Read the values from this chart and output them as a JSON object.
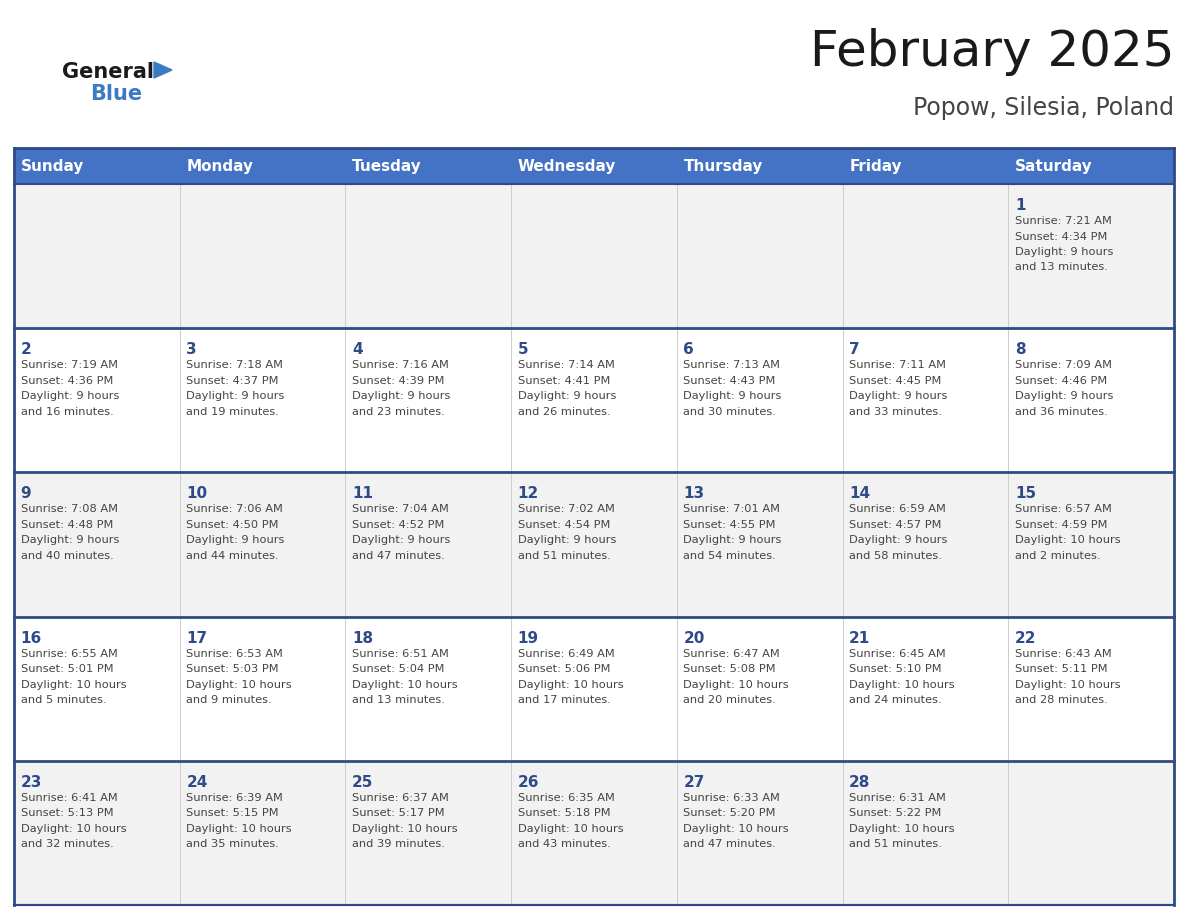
{
  "title": "February 2025",
  "subtitle": "Popow, Silesia, Poland",
  "header_bg": "#4472C4",
  "header_text": "#FFFFFF",
  "header_days": [
    "Sunday",
    "Monday",
    "Tuesday",
    "Wednesday",
    "Thursday",
    "Friday",
    "Saturday"
  ],
  "row_bg_light": "#F2F2F2",
  "row_bg_white": "#FFFFFF",
  "day_num_color": "#2E4A87",
  "cell_text_color": "#444444",
  "border_color": "#2E4A87",
  "title_color": "#1a1a1a",
  "subtitle_color": "#444444",
  "logo_general_color": "#1a1a1a",
  "logo_blue_color": "#3D7AC4",
  "weeks": [
    [
      {
        "day": null,
        "info": null
      },
      {
        "day": null,
        "info": null
      },
      {
        "day": null,
        "info": null
      },
      {
        "day": null,
        "info": null
      },
      {
        "day": null,
        "info": null
      },
      {
        "day": null,
        "info": null
      },
      {
        "day": 1,
        "info": "Sunrise: 7:21 AM\nSunset: 4:34 PM\nDaylight: 9 hours\nand 13 minutes."
      }
    ],
    [
      {
        "day": 2,
        "info": "Sunrise: 7:19 AM\nSunset: 4:36 PM\nDaylight: 9 hours\nand 16 minutes."
      },
      {
        "day": 3,
        "info": "Sunrise: 7:18 AM\nSunset: 4:37 PM\nDaylight: 9 hours\nand 19 minutes."
      },
      {
        "day": 4,
        "info": "Sunrise: 7:16 AM\nSunset: 4:39 PM\nDaylight: 9 hours\nand 23 minutes."
      },
      {
        "day": 5,
        "info": "Sunrise: 7:14 AM\nSunset: 4:41 PM\nDaylight: 9 hours\nand 26 minutes."
      },
      {
        "day": 6,
        "info": "Sunrise: 7:13 AM\nSunset: 4:43 PM\nDaylight: 9 hours\nand 30 minutes."
      },
      {
        "day": 7,
        "info": "Sunrise: 7:11 AM\nSunset: 4:45 PM\nDaylight: 9 hours\nand 33 minutes."
      },
      {
        "day": 8,
        "info": "Sunrise: 7:09 AM\nSunset: 4:46 PM\nDaylight: 9 hours\nand 36 minutes."
      }
    ],
    [
      {
        "day": 9,
        "info": "Sunrise: 7:08 AM\nSunset: 4:48 PM\nDaylight: 9 hours\nand 40 minutes."
      },
      {
        "day": 10,
        "info": "Sunrise: 7:06 AM\nSunset: 4:50 PM\nDaylight: 9 hours\nand 44 minutes."
      },
      {
        "day": 11,
        "info": "Sunrise: 7:04 AM\nSunset: 4:52 PM\nDaylight: 9 hours\nand 47 minutes."
      },
      {
        "day": 12,
        "info": "Sunrise: 7:02 AM\nSunset: 4:54 PM\nDaylight: 9 hours\nand 51 minutes."
      },
      {
        "day": 13,
        "info": "Sunrise: 7:01 AM\nSunset: 4:55 PM\nDaylight: 9 hours\nand 54 minutes."
      },
      {
        "day": 14,
        "info": "Sunrise: 6:59 AM\nSunset: 4:57 PM\nDaylight: 9 hours\nand 58 minutes."
      },
      {
        "day": 15,
        "info": "Sunrise: 6:57 AM\nSunset: 4:59 PM\nDaylight: 10 hours\nand 2 minutes."
      }
    ],
    [
      {
        "day": 16,
        "info": "Sunrise: 6:55 AM\nSunset: 5:01 PM\nDaylight: 10 hours\nand 5 minutes."
      },
      {
        "day": 17,
        "info": "Sunrise: 6:53 AM\nSunset: 5:03 PM\nDaylight: 10 hours\nand 9 minutes."
      },
      {
        "day": 18,
        "info": "Sunrise: 6:51 AM\nSunset: 5:04 PM\nDaylight: 10 hours\nand 13 minutes."
      },
      {
        "day": 19,
        "info": "Sunrise: 6:49 AM\nSunset: 5:06 PM\nDaylight: 10 hours\nand 17 minutes."
      },
      {
        "day": 20,
        "info": "Sunrise: 6:47 AM\nSunset: 5:08 PM\nDaylight: 10 hours\nand 20 minutes."
      },
      {
        "day": 21,
        "info": "Sunrise: 6:45 AM\nSunset: 5:10 PM\nDaylight: 10 hours\nand 24 minutes."
      },
      {
        "day": 22,
        "info": "Sunrise: 6:43 AM\nSunset: 5:11 PM\nDaylight: 10 hours\nand 28 minutes."
      }
    ],
    [
      {
        "day": 23,
        "info": "Sunrise: 6:41 AM\nSunset: 5:13 PM\nDaylight: 10 hours\nand 32 minutes."
      },
      {
        "day": 24,
        "info": "Sunrise: 6:39 AM\nSunset: 5:15 PM\nDaylight: 10 hours\nand 35 minutes."
      },
      {
        "day": 25,
        "info": "Sunrise: 6:37 AM\nSunset: 5:17 PM\nDaylight: 10 hours\nand 39 minutes."
      },
      {
        "day": 26,
        "info": "Sunrise: 6:35 AM\nSunset: 5:18 PM\nDaylight: 10 hours\nand 43 minutes."
      },
      {
        "day": 27,
        "info": "Sunrise: 6:33 AM\nSunset: 5:20 PM\nDaylight: 10 hours\nand 47 minutes."
      },
      {
        "day": 28,
        "info": "Sunrise: 6:31 AM\nSunset: 5:22 PM\nDaylight: 10 hours\nand 51 minutes."
      },
      {
        "day": null,
        "info": null
      }
    ]
  ],
  "row_backgrounds": [
    "#F2F2F2",
    "#FFFFFF",
    "#F2F2F2",
    "#FFFFFF",
    "#F2F2F2"
  ]
}
